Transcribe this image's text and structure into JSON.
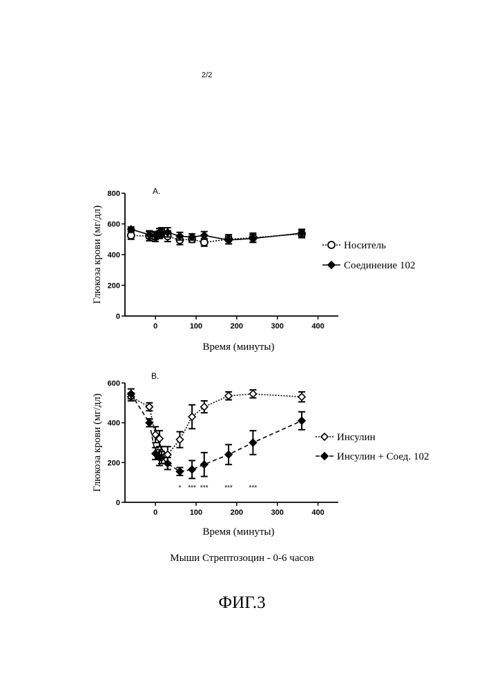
{
  "page_label": "2/2",
  "caption": "Мыши Стрептозоцин - 0-6 часов",
  "figure_label": "ФИГ.3",
  "chart_data": [
    {
      "type": "line",
      "panel_label": "A.",
      "xlabel": "Время (минуты)",
      "ylabel": "Глюкоза крови (мг/дл)",
      "xlim": [
        -75,
        450
      ],
      "ylim": [
        0,
        800
      ],
      "xticks": [
        0,
        100,
        200,
        300,
        400
      ],
      "yticks": [
        0,
        200,
        400,
        600,
        800
      ],
      "grid": false,
      "legend_position": "right",
      "series": [
        {
          "name": "Носитель",
          "marker": "open-circle",
          "line": "dotted",
          "x": [
            -60,
            -15,
            0,
            10,
            15,
            30,
            60,
            90,
            120,
            180,
            240,
            360
          ],
          "y": [
            525,
            520,
            515,
            530,
            545,
            520,
            495,
            500,
            480,
            500,
            510,
            535
          ],
          "err": [
            25,
            30,
            30,
            25,
            30,
            35,
            30,
            20,
            25,
            30,
            30,
            25
          ]
        },
        {
          "name": "Соединение 102",
          "marker": "filled-diamond",
          "line": "solid",
          "x": [
            -60,
            -15,
            0,
            10,
            15,
            30,
            60,
            90,
            120,
            180,
            240,
            360
          ],
          "y": [
            565,
            530,
            525,
            545,
            540,
            545,
            520,
            515,
            525,
            495,
            505,
            540
          ],
          "err": [
            15,
            25,
            25,
            25,
            25,
            30,
            25,
            20,
            25,
            25,
            25,
            25
          ]
        }
      ]
    },
    {
      "type": "line",
      "panel_label": "B.",
      "xlabel": "Время (минуты)",
      "ylabel": "Глюкоза крови (мг/дл)",
      "xlim": [
        -75,
        450
      ],
      "ylim": [
        0,
        600
      ],
      "xticks": [
        0,
        100,
        200,
        300,
        400
      ],
      "yticks": [
        0,
        200,
        400,
        600
      ],
      "grid": false,
      "legend_position": "right",
      "series": [
        {
          "name": "Инсулин",
          "marker": "open-diamond",
          "line": "dotted",
          "x": [
            -60,
            -15,
            0,
            10,
            15,
            30,
            60,
            90,
            120,
            180,
            240,
            360
          ],
          "y": [
            530,
            480,
            340,
            320,
            250,
            240,
            315,
            430,
            480,
            535,
            545,
            530
          ],
          "err": [
            20,
            20,
            40,
            40,
            30,
            40,
            40,
            60,
            30,
            20,
            20,
            25
          ]
        },
        {
          "name": "Инсулин + Соед. 102",
          "marker": "filled-diamond",
          "line": "dashed",
          "x": [
            -60,
            -15,
            0,
            10,
            15,
            30,
            60,
            90,
            120,
            180,
            240,
            360
          ],
          "y": [
            545,
            400,
            245,
            225,
            225,
            195,
            155,
            165,
            190,
            240,
            300,
            410
          ],
          "err": [
            25,
            20,
            30,
            40,
            30,
            30,
            20,
            45,
            60,
            50,
            60,
            45
          ]
        }
      ],
      "annotations": [
        {
          "text": "*",
          "x": 60
        },
        {
          "text": "***",
          "x": 90
        },
        {
          "text": "***",
          "x": 120
        },
        {
          "text": "***",
          "x": 180
        },
        {
          "text": "***",
          "x": 240
        }
      ]
    }
  ]
}
